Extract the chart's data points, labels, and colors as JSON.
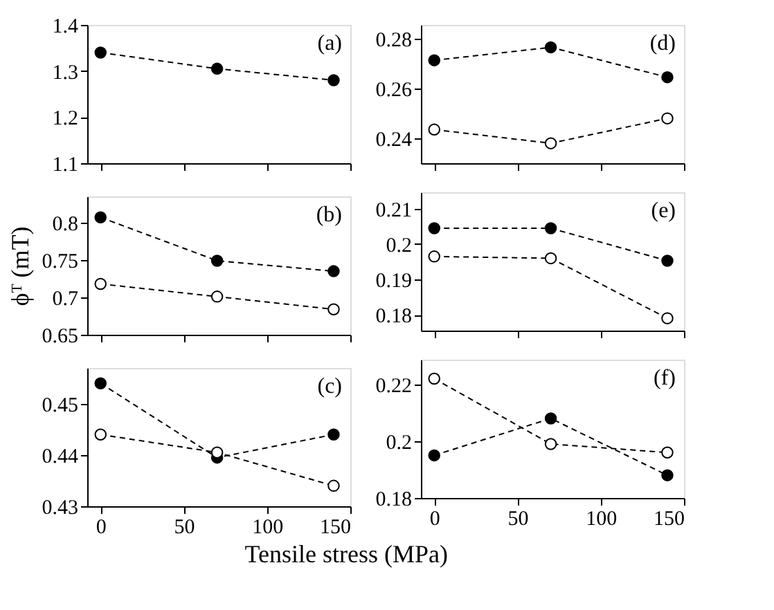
{
  "chart_data": [
    {
      "type": "line",
      "annotations": [
        "(a)"
      ],
      "x": [
        0,
        70,
        140
      ],
      "xlim": [
        -8,
        150
      ],
      "xticks": [
        0,
        50,
        100,
        150
      ],
      "ylim": [
        1.1,
        1.4
      ],
      "yticks": [
        1.1,
        1.2,
        1.3,
        1.4
      ],
      "tick_labels": "y",
      "marker": "circle",
      "line_style": "dashed",
      "grid": false,
      "series": [
        {
          "color": "#000000",
          "values": [
            1.34,
            1.305,
            1.28
          ]
        }
      ]
    },
    {
      "type": "line",
      "annotations": [
        "(d)"
      ],
      "x": [
        0,
        70,
        140
      ],
      "xlim": [
        -8,
        150
      ],
      "xticks": [
        0,
        50,
        100,
        150
      ],
      "ylim": [
        0.23,
        0.2855
      ],
      "yticks": [
        0.24,
        0.26,
        0.28
      ],
      "tick_labels": "y",
      "marker": "circle",
      "line_style": "dashed",
      "grid": false,
      "series": [
        {
          "color": "#000000",
          "values": [
            0.2713,
            0.2765,
            0.2645
          ]
        },
        {
          "color": "#ffffff",
          "values": [
            0.2435,
            0.238,
            0.248
          ]
        }
      ]
    },
    {
      "type": "line",
      "annotations": [
        "(b)"
      ],
      "ylabel": "ϕᵀ (mT)",
      "x": [
        0,
        70,
        140
      ],
      "xlim": [
        -8,
        150
      ],
      "xticks": [
        0,
        50,
        100,
        150
      ],
      "ylim": [
        0.65,
        0.835
      ],
      "yticks": [
        0.65,
        0.7,
        0.75,
        0.8
      ],
      "tick_labels": "y",
      "marker": "circle",
      "line_style": "dashed",
      "grid": false,
      "series": [
        {
          "color": "#000000",
          "values": [
            0.807,
            0.749,
            0.735
          ]
        },
        {
          "color": "#ffffff",
          "values": [
            0.718,
            0.701,
            0.684
          ]
        }
      ]
    },
    {
      "type": "line",
      "annotations": [
        "(e)"
      ],
      "x": [
        0,
        70,
        140
      ],
      "xlim": [
        -8,
        150
      ],
      "xticks": [
        0,
        50,
        100,
        150
      ],
      "ylim": [
        0.1755,
        0.2147
      ],
      "yticks": [
        0.18,
        0.19,
        0.2,
        0.21
      ],
      "tick_labels": "y",
      "marker": "circle",
      "line_style": "dashed",
      "grid": false,
      "series": [
        {
          "color": "#000000",
          "values": [
            0.2045,
            0.2045,
            0.1953
          ]
        },
        {
          "color": "#ffffff",
          "values": [
            0.1965,
            0.196,
            0.179
          ]
        }
      ]
    },
    {
      "type": "line",
      "annotations": [
        "(c)"
      ],
      "xlabel": "Tensile stress (MPa)",
      "x": [
        0,
        70,
        140
      ],
      "xlim": [
        -8,
        150
      ],
      "xticks": [
        0,
        50,
        100,
        150
      ],
      "ylim": [
        0.43,
        0.457
      ],
      "yticks": [
        0.43,
        0.44,
        0.45
      ],
      "marker": "circle",
      "line_style": "dashed",
      "grid": false,
      "series": [
        {
          "color": "#000000",
          "values": [
            0.454,
            0.4395,
            0.444
          ]
        },
        {
          "color": "#ffffff",
          "values": [
            0.444,
            0.4405,
            0.434
          ]
        }
      ]
    },
    {
      "type": "line",
      "annotations": [
        "(f)"
      ],
      "x": [
        0,
        70,
        140
      ],
      "xlim": [
        -8,
        150
      ],
      "xticks": [
        0,
        50,
        100,
        150
      ],
      "ylim": [
        0.18,
        0.2287
      ],
      "yticks": [
        0.18,
        0.2,
        0.22
      ],
      "marker": "circle",
      "line_style": "dashed",
      "grid": false,
      "series": [
        {
          "color": "#000000",
          "values": [
            0.195,
            0.208,
            0.188
          ]
        },
        {
          "color": "#ffffff",
          "values": [
            0.222,
            0.199,
            0.196
          ]
        }
      ]
    }
  ]
}
